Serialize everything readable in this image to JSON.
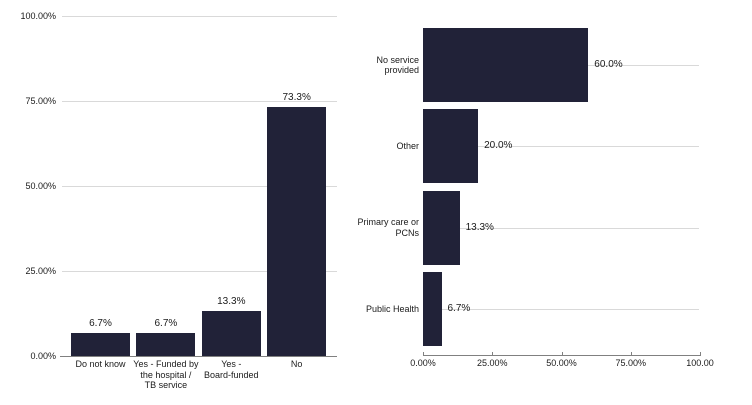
{
  "colors": {
    "bar": "#212238",
    "gridline": "#d9d9d9",
    "axis": "#808080",
    "text": "#1a1a1a",
    "background": "#ffffff"
  },
  "chart_data": [
    {
      "type": "bar",
      "orientation": "vertical",
      "title": "",
      "categories": [
        "Do not know",
        "Yes -  Funded by\nthe hospital /\nTB service",
        "Yes -\nBoard-funded",
        "No"
      ],
      "values": [
        6.7,
        6.7,
        13.3,
        73.3
      ],
      "value_labels": [
        "6.7%",
        "6.7%",
        "13.3%",
        "73.3%"
      ],
      "y_axis": {
        "range": [
          0,
          100
        ],
        "ticks": [
          {
            "label": "100.00%",
            "value": 100
          },
          {
            "label": "75.00%",
            "value": 75
          },
          {
            "label": "50.00%",
            "value": 50
          },
          {
            "label": "25.00%",
            "value": 25
          },
          {
            "label": "0.00%",
            "value": 0
          }
        ]
      },
      "grid": true,
      "legend": false
    },
    {
      "type": "bar",
      "orientation": "horizontal",
      "title": "",
      "categories": [
        "No service\nprovided",
        "Other",
        "Primary care or\nPCNs",
        "Public Health"
      ],
      "values": [
        60.0,
        20.0,
        13.3,
        6.7
      ],
      "value_labels": [
        "60.0%",
        "20.0%",
        "13.3%",
        "6.7%"
      ],
      "x_axis": {
        "range": [
          0,
          100
        ],
        "ticks": [
          {
            "label": "0.00%",
            "value": 0
          },
          {
            "label": "25.00%",
            "value": 25
          },
          {
            "label": "50.00%",
            "value": 50
          },
          {
            "label": "75.00%",
            "value": 75
          },
          {
            "label": "100.00",
            "value": 100
          }
        ]
      },
      "grid": true,
      "legend": false
    }
  ]
}
